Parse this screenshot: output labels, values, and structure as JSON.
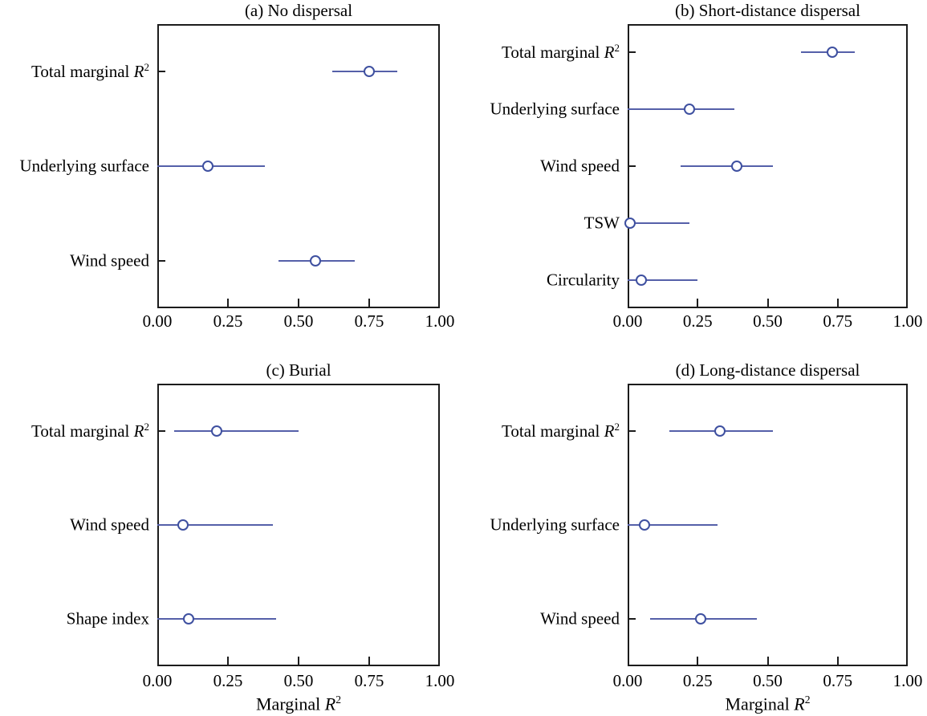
{
  "figure": {
    "axis": {
      "min": 0,
      "max": 1,
      "tick_values": [
        0,
        0.25,
        0.5,
        0.75,
        1
      ],
      "tick_labels": [
        "0.00",
        "0.25",
        "0.50",
        "0.75",
        "1.00"
      ]
    },
    "colors": {
      "line": "#5560a9",
      "marker_stroke": "#3e50a0",
      "marker_fill": "#ffffff",
      "frame": "#1c1c1c",
      "text": "#000000"
    },
    "xlabel": "Marginal R²"
  },
  "chart_data": [
    {
      "type": "scatter",
      "panel": "a",
      "title": "(a) No dispersal",
      "xlabel": "",
      "xlim": [
        0,
        1
      ],
      "xtick_labels": [
        "0.00",
        "0.25",
        "0.50",
        "0.75",
        "1.00"
      ],
      "categories": [
        "Total marginal R²",
        "Underlying surface",
        "Wind speed"
      ],
      "estimates": [
        0.75,
        0.18,
        0.56
      ],
      "ci_low": [
        0.62,
        0.0,
        0.43
      ],
      "ci_high": [
        0.85,
        0.38,
        0.7
      ]
    },
    {
      "type": "scatter",
      "panel": "b",
      "title": "(b) Short-distance dispersal",
      "xlabel": "",
      "xlim": [
        0,
        1
      ],
      "xtick_labels": [
        "0.00",
        "0.25",
        "0.50",
        "0.75",
        "1.00"
      ],
      "categories": [
        "Total marginal R²",
        "Underlying surface",
        "Wind speed",
        "TSW",
        "Circularity"
      ],
      "estimates": [
        0.73,
        0.22,
        0.39,
        0.01,
        0.05
      ],
      "ci_low": [
        0.62,
        0.0,
        0.19,
        0.0,
        0.0
      ],
      "ci_high": [
        0.81,
        0.38,
        0.52,
        0.22,
        0.25
      ]
    },
    {
      "type": "scatter",
      "panel": "c",
      "title": "(c) Burial",
      "xlabel": "Marginal R²",
      "xlim": [
        0,
        1
      ],
      "xtick_labels": [
        "0.00",
        "0.25",
        "0.50",
        "0.75",
        "1.00"
      ],
      "categories": [
        "Total marginal R²",
        "Wind speed",
        "Shape index"
      ],
      "estimates": [
        0.21,
        0.09,
        0.11
      ],
      "ci_low": [
        0.06,
        0.0,
        0.0
      ],
      "ci_high": [
        0.5,
        0.41,
        0.42
      ]
    },
    {
      "type": "scatter",
      "panel": "d",
      "title": "(d) Long-distance dispersal",
      "xlabel": "Marginal R²",
      "xlim": [
        0,
        1
      ],
      "xtick_labels": [
        "0.00",
        "0.25",
        "0.50",
        "0.75",
        "1.00"
      ],
      "categories": [
        "Total marginal R²",
        "Underlying surface",
        "Wind speed"
      ],
      "estimates": [
        0.33,
        0.06,
        0.26
      ],
      "ci_low": [
        0.15,
        0.0,
        0.08
      ],
      "ci_high": [
        0.52,
        0.32,
        0.46
      ]
    }
  ]
}
